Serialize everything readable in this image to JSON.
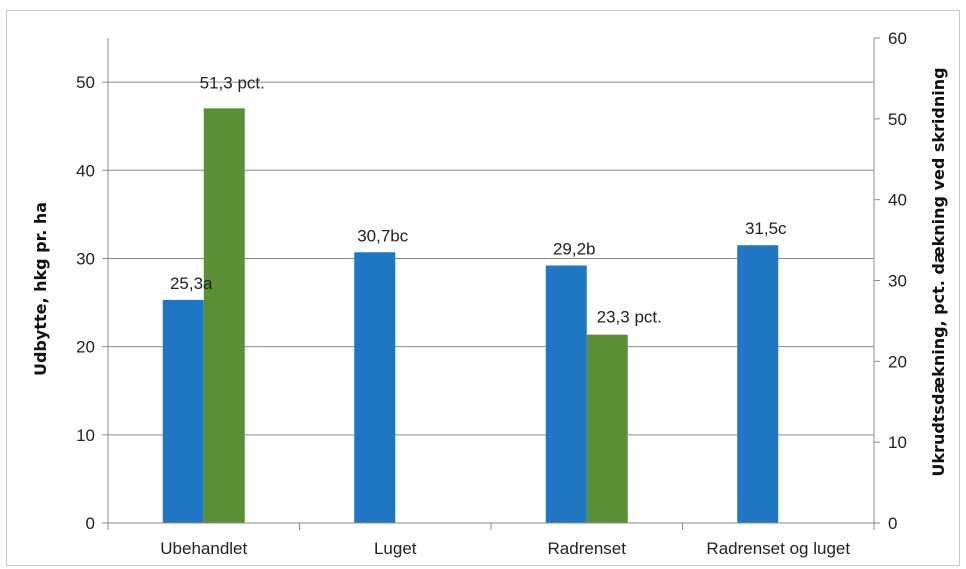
{
  "chart_data": {
    "type": "bar",
    "categories": [
      "Ubehandlet",
      "Luget",
      "Radrenset",
      "Radrenset og luget"
    ],
    "series": [
      {
        "axis": "left",
        "color": "#1f77c4",
        "values": [
          25.3,
          30.7,
          29.2,
          31.5
        ],
        "data_labels": [
          "25,3a",
          "30,7bc",
          "29,2b",
          "31,5c"
        ]
      },
      {
        "axis": "right",
        "color": "#5a8f36",
        "values": [
          51.3,
          null,
          23.3,
          null
        ],
        "data_labels": [
          "51,3 pct.",
          "",
          "23,3 pct.",
          ""
        ]
      }
    ],
    "ylabel": "Udbytte, hkg pr. ha",
    "y2label": "Ukrudtsdækning, pct. dækning ved skridning",
    "ylim": [
      0,
      50
    ],
    "y2lim": [
      0,
      60
    ],
    "yticks": [
      "0",
      "10",
      "20",
      "30",
      "40",
      "50"
    ],
    "y2ticks": [
      "0",
      "10",
      "20",
      "30",
      "40",
      "50",
      "60"
    ],
    "grid": true,
    "legend": "none"
  }
}
